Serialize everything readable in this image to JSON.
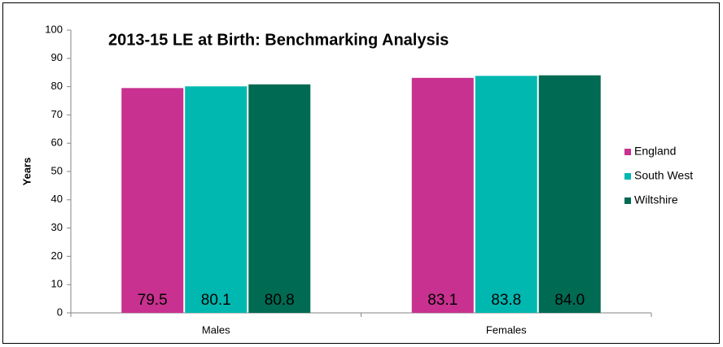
{
  "chart_data": {
    "type": "bar",
    "title": "2013-15 LE at Birth: Benchmarking Analysis",
    "y_label": "Years",
    "categories": [
      "Males",
      "Females"
    ],
    "series": [
      {
        "name": "England",
        "color": "#c8318f",
        "values": [
          79.5,
          83.1
        ],
        "value_labels": [
          "79.5",
          "83.1"
        ]
      },
      {
        "name": "South West",
        "color": "#00b8b0",
        "values": [
          80.1,
          83.8
        ],
        "value_labels": [
          "80.1",
          "83.8"
        ]
      },
      {
        "name": "Wiltshire",
        "color": "#006a52",
        "values": [
          80.8,
          84.0
        ],
        "value_labels": [
          "80.8",
          "84.0"
        ]
      }
    ],
    "ylim": [
      0,
      100
    ],
    "yticks": [
      0,
      10,
      20,
      30,
      40,
      50,
      60,
      70,
      80,
      90,
      100
    ],
    "grid": false,
    "legend": "right"
  }
}
